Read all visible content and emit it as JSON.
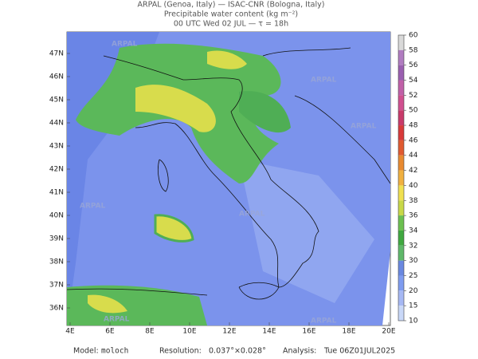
{
  "header": {
    "line1": "ARPAL (Genoa, Italy)  —  ISAC-CNR (Bologna, Italy)",
    "line2": "Precipitable water content (kg m⁻²)",
    "line3": "00 UTC Wed 02 JUL  —  τ = 18h"
  },
  "map": {
    "latitudes": [
      "47N",
      "46N",
      "45N",
      "44N",
      "43N",
      "42N",
      "41N",
      "40N",
      "39N",
      "38N",
      "37N",
      "36N"
    ],
    "longitudes": [
      "4E",
      "6E",
      "8E",
      "10E",
      "12E",
      "14E",
      "16E",
      "18E",
      "20E"
    ],
    "watermark": "ARPAL"
  },
  "colorbar": {
    "ticks": [
      60,
      58,
      56,
      54,
      52,
      50,
      48,
      46,
      44,
      42,
      40,
      38,
      36,
      34,
      32,
      30,
      25,
      20,
      15,
      10
    ],
    "colors": [
      "#d9d9d9",
      "#b07cc0",
      "#9a5fb0",
      "#c060a8",
      "#d05090",
      "#c83a6a",
      "#d83a3a",
      "#e05a30",
      "#e88a30",
      "#f0b040",
      "#f0e050",
      "#c8d848",
      "#6cc050",
      "#40a840",
      "#5fb86a",
      "#6a88e0",
      "#7f9cf0",
      "#a6b8f4",
      "#c9d8f8"
    ]
  },
  "footer": {
    "model_label": "Model:",
    "model": "moloch",
    "resolution_label": "Resolution:",
    "resolution": "0.037°×0.028°",
    "analysis_label": "Analysis:",
    "analysis": "Tue 06Z01JUL2025"
  }
}
